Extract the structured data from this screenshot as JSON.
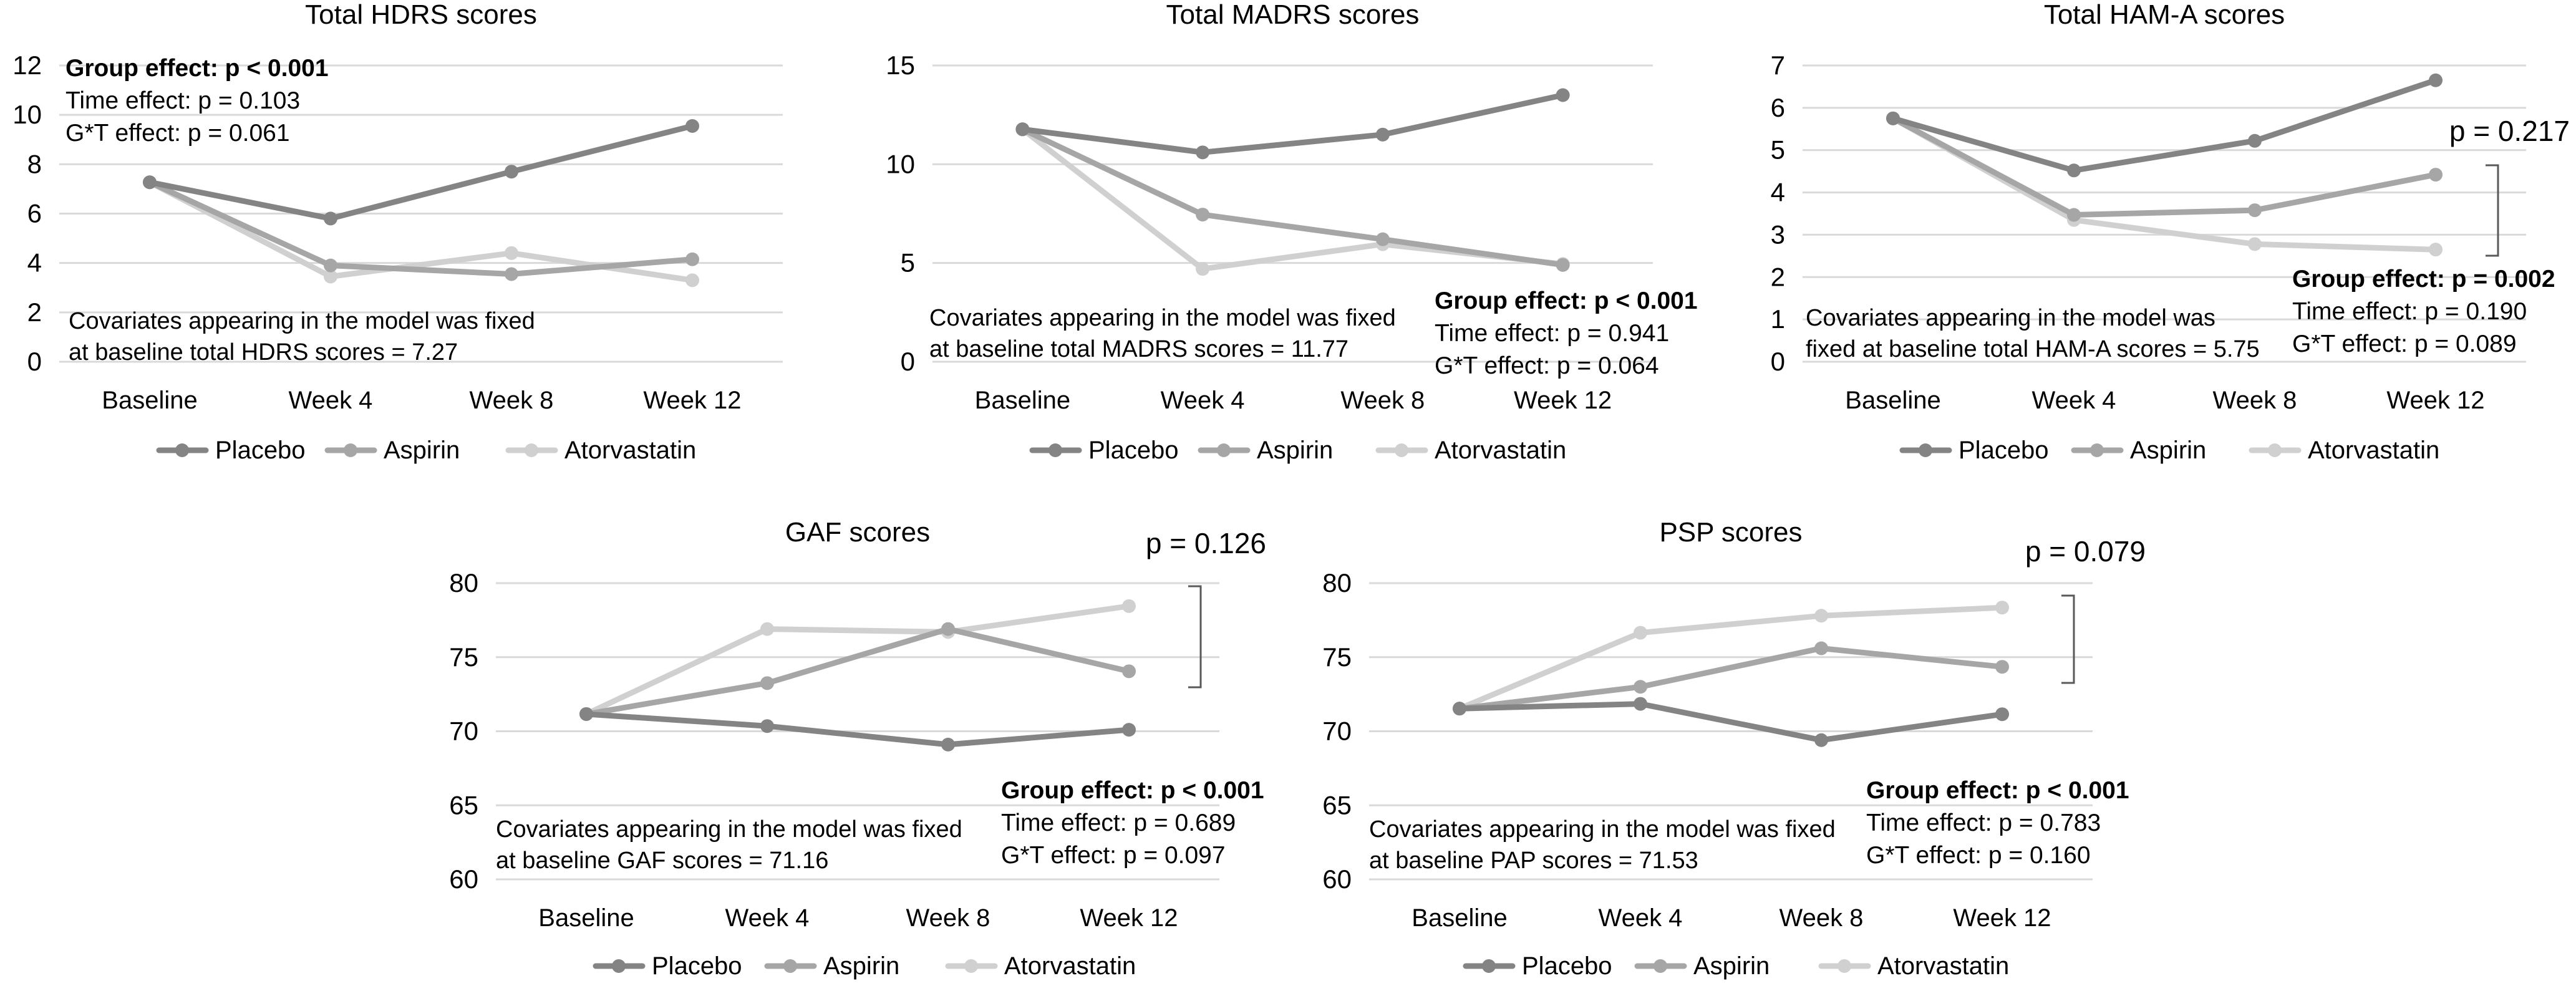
{
  "colors": {
    "placebo": "#848484",
    "aspirin": "#a6a6a6",
    "atorvastatin": "#d0d0d0",
    "grid": "#d9d9d9",
    "text": "#000000"
  },
  "legend_labels": [
    "Placebo",
    "Aspirin",
    "Atorvastatin"
  ],
  "chart_data": [
    {
      "id": "hdrs",
      "type": "line",
      "title": "Total HDRS scores",
      "categories": [
        "Baseline",
        "Week 4",
        "Week 8",
        "Week 12"
      ],
      "yticks": [
        "0",
        "2",
        "4",
        "6",
        "8",
        "10",
        "12"
      ],
      "ylim": [
        0,
        12
      ],
      "series": [
        {
          "name": "Placebo",
          "values": [
            7.27,
            5.8,
            7.7,
            9.55
          ]
        },
        {
          "name": "Aspirin",
          "values": [
            7.27,
            3.9,
            3.55,
            4.15
          ]
        },
        {
          "name": "Atorvastatin",
          "values": [
            7.27,
            3.45,
            4.4,
            3.3
          ]
        }
      ],
      "stats": [
        {
          "bold": "Group effect: p < 0.001",
          "rest": ""
        },
        {
          "bold": "",
          "rest": "Time effect: p = 0.103"
        },
        {
          "bold": "",
          "rest": "G*T effect: p = 0.061"
        }
      ],
      "covariate": [
        "Covariates appearing in the model was fixed",
        "at baseline total HDRS scores = 7.27"
      ],
      "bracket_p": null
    },
    {
      "id": "madrs",
      "type": "line",
      "title": "Total MADRS scores",
      "categories": [
        "Baseline",
        "Week 4",
        "Week 8",
        "Week 12"
      ],
      "yticks": [
        "0",
        "5",
        "10",
        "15"
      ],
      "ylim": [
        0,
        15
      ],
      "series": [
        {
          "name": "Placebo",
          "values": [
            11.77,
            10.6,
            11.5,
            13.5
          ]
        },
        {
          "name": "Aspirin",
          "values": [
            11.77,
            7.45,
            6.2,
            4.9
          ]
        },
        {
          "name": "Atorvastatin",
          "values": [
            11.77,
            4.7,
            5.95,
            4.95
          ]
        }
      ],
      "stats": [
        {
          "bold": "Group effect: p < 0.001",
          "rest": ""
        },
        {
          "bold": "",
          "rest": "Time effect: p = 0.941"
        },
        {
          "bold": "",
          "rest": "G*T effect: p = 0.064"
        }
      ],
      "covariate": [
        "Covariates appearing in the model was fixed",
        "at baseline total MADRS scores = 11.77"
      ],
      "bracket_p": null
    },
    {
      "id": "hama",
      "type": "line",
      "title": "Total HAM-A scores",
      "categories": [
        "Baseline",
        "Week 4",
        "Week 8",
        "Week 12"
      ],
      "yticks": [
        "0",
        "1",
        "2",
        "3",
        "4",
        "5",
        "6",
        "7"
      ],
      "ylim": [
        0,
        7
      ],
      "series": [
        {
          "name": "Placebo",
          "values": [
            5.75,
            4.52,
            5.22,
            6.65
          ]
        },
        {
          "name": "Aspirin",
          "values": [
            5.75,
            3.47,
            3.58,
            4.42
          ]
        },
        {
          "name": "Atorvastatin",
          "values": [
            5.75,
            3.35,
            2.78,
            2.65
          ]
        }
      ],
      "stats": [
        {
          "bold": "Group effect: p = 0.002",
          "rest": ""
        },
        {
          "bold": "",
          "rest": "Time effect: p = 0.190"
        },
        {
          "bold": "",
          "rest": "G*T effect: p = 0.089"
        }
      ],
      "covariate": [
        "Covariates appearing in the model was",
        "fixed at baseline total HAM-A scores = 5.75"
      ],
      "bracket_p": "p = 0.217"
    },
    {
      "id": "gaf",
      "type": "line",
      "title": "GAF scores",
      "categories": [
        "Baseline",
        "Week 4",
        "Week 8",
        "Week 12"
      ],
      "yticks": [
        "60",
        "65",
        "70",
        "75",
        "80"
      ],
      "ylim": [
        60,
        80
      ],
      "series": [
        {
          "name": "Placebo",
          "values": [
            71.16,
            70.35,
            69.1,
            70.1
          ]
        },
        {
          "name": "Aspirin",
          "values": [
            71.16,
            73.25,
            76.9,
            74.05
          ]
        },
        {
          "name": "Atorvastatin",
          "values": [
            71.16,
            76.9,
            76.7,
            78.45
          ]
        }
      ],
      "stats": [
        {
          "bold": "Group effect: p < 0.001",
          "rest": ""
        },
        {
          "bold": "",
          "rest": "Time effect: p = 0.689"
        },
        {
          "bold": "",
          "rest": "G*T effect: p = 0.097"
        }
      ],
      "covariate": [
        "Covariates appearing in the model was fixed",
        "at baseline GAF scores = 71.16"
      ],
      "bracket_p": "p = 0.126"
    },
    {
      "id": "psp",
      "type": "line",
      "title": "PSP scores",
      "categories": [
        "Baseline",
        "Week 4",
        "Week 8",
        "Week 12"
      ],
      "yticks": [
        "60",
        "65",
        "70",
        "75",
        "80"
      ],
      "ylim": [
        60,
        80
      ],
      "series": [
        {
          "name": "Placebo",
          "values": [
            71.53,
            71.85,
            69.4,
            71.15
          ]
        },
        {
          "name": "Aspirin",
          "values": [
            71.53,
            73.0,
            75.6,
            74.35
          ]
        },
        {
          "name": "Atorvastatin",
          "values": [
            71.53,
            76.65,
            77.8,
            78.35
          ]
        }
      ],
      "stats": [
        {
          "bold": "Group effect: p < 0.001",
          "rest": ""
        },
        {
          "bold": "",
          "rest": "Time effect: p = 0.783"
        },
        {
          "bold": "",
          "rest": "G*T effect: p = 0.160"
        }
      ],
      "covariate": [
        "Covariates appearing in the model was fixed",
        "at baseline PAP scores = 71.53"
      ],
      "bracket_p": "p = 0.079"
    }
  ]
}
